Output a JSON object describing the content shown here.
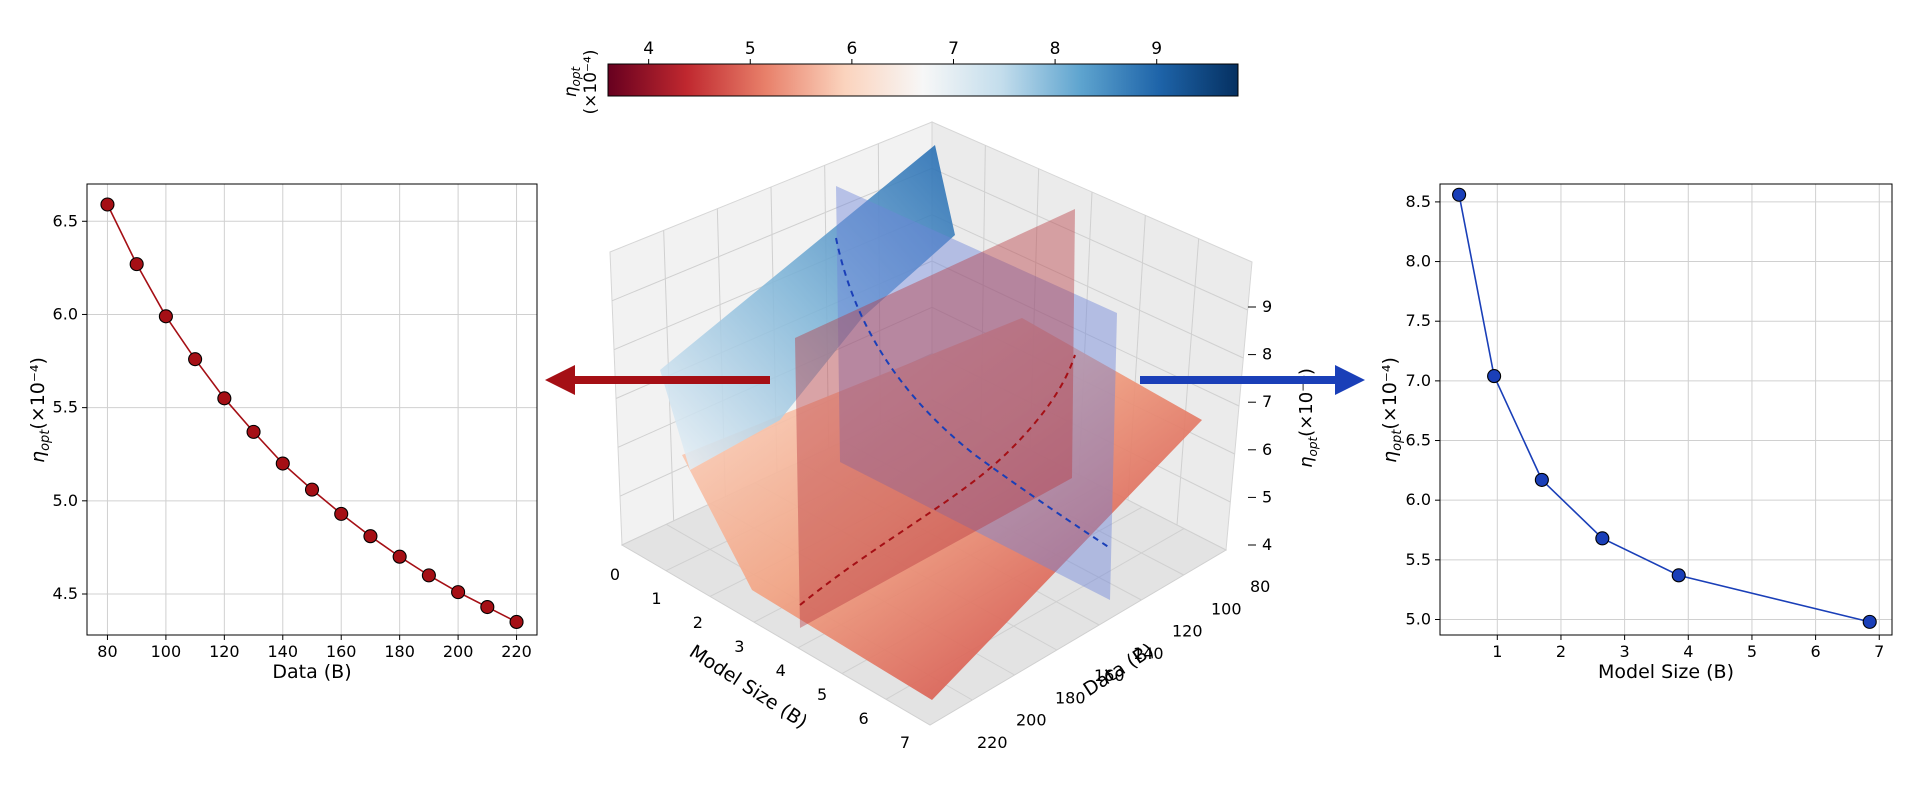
{
  "colorbar": {
    "label_main": "η",
    "label_sub": "opt",
    "label_scale": "(×10⁻⁴)",
    "ticks": [
      "4",
      "5",
      "6",
      "7",
      "8",
      "9"
    ],
    "tick_values": [
      4,
      5,
      6,
      7,
      8,
      9
    ],
    "range": [
      3.6,
      9.8
    ],
    "colors": [
      "#67001f",
      "#c0282f",
      "#e8806a",
      "#fbd3bd",
      "#f7f7f7",
      "#c3ddec",
      "#5ea4cf",
      "#1e64a9",
      "#053061"
    ]
  },
  "chart_data": [
    {
      "type": "line",
      "title": "",
      "xlabel": "Data (B)",
      "ylabel_main": "η",
      "ylabel_sub": "opt",
      "ylabel_scale": "(×10⁻⁴)",
      "x": [
        80,
        90,
        100,
        110,
        120,
        130,
        140,
        150,
        160,
        170,
        180,
        190,
        200,
        210,
        220
      ],
      "y": [
        6.59,
        6.27,
        5.99,
        5.76,
        5.55,
        5.37,
        5.2,
        5.06,
        4.93,
        4.81,
        4.7,
        4.6,
        4.51,
        4.43,
        4.35
      ],
      "xlim": [
        73,
        227
      ],
      "ylim": [
        4.28,
        6.7
      ],
      "xticks": [
        80,
        100,
        120,
        140,
        160,
        180,
        200,
        220
      ],
      "yticks": [
        4.5,
        5.0,
        5.5,
        6.0,
        6.5
      ],
      "yticklabels": [
        "4.5",
        "5.0",
        "5.5",
        "6.0",
        "6.5"
      ],
      "color": "#a50f15",
      "grid": true
    },
    {
      "type": "line",
      "title": "",
      "xlabel": "Model Size (B)",
      "ylabel_main": "η",
      "ylabel_sub": "opt",
      "ylabel_scale": "(×10⁻⁴)",
      "x": [
        0.4,
        0.95,
        1.7,
        2.65,
        3.85,
        6.85
      ],
      "y": [
        8.56,
        7.04,
        6.17,
        5.68,
        5.37,
        4.98
      ],
      "xlim": [
        0.1,
        7.2
      ],
      "ylim": [
        4.87,
        8.65
      ],
      "xticks": [
        1,
        2,
        3,
        4,
        5,
        6,
        7
      ],
      "yticks": [
        5.0,
        5.5,
        6.0,
        6.5,
        7.0,
        7.5,
        8.0,
        8.5
      ],
      "yticklabels": [
        "5.0",
        "5.5",
        "6.0",
        "6.5",
        "7.0",
        "7.5",
        "8.0",
        "8.5"
      ],
      "color": "#1a3fb8",
      "grid": true
    },
    {
      "type": "surface3d",
      "title": "",
      "xlabel": "Model Size (B)",
      "ylabel": "Data (B)",
      "zlabel_main": "η",
      "zlabel_sub": "opt",
      "zlabel_scale": "(×10⁻⁴)",
      "xticks": [
        "0",
        "1",
        "2",
        "3",
        "4",
        "5",
        "6",
        "7"
      ],
      "yticks": [
        "80",
        "100",
        "120",
        "140",
        "160",
        "180",
        "200",
        "220"
      ],
      "zticks": [
        "4",
        "5",
        "6",
        "7",
        "8",
        "9"
      ],
      "surfaces": [
        "Data-dependence surface (red)",
        "Model-size-dependence surface (blue)"
      ]
    }
  ]
}
